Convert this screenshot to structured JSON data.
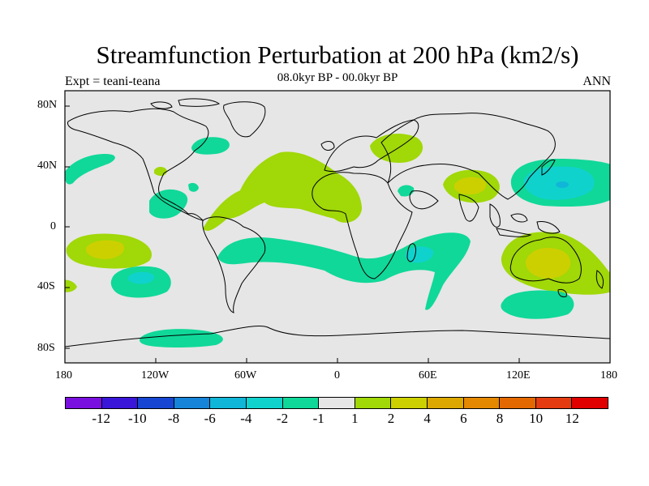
{
  "title": "Streamfunction Perturbation at 200 hPa (km2/s)",
  "experiment": "Expt = teani-teana",
  "subtitle": "08.0kyr BP - 00.0kyr BP",
  "season": "ANN",
  "axes": {
    "lat_labels": [
      "80N",
      "40N",
      "0",
      "40S",
      "80S"
    ],
    "lon_labels": [
      "180",
      "120W",
      "60W",
      "0",
      "60E",
      "120E",
      "180"
    ]
  },
  "colors": {
    "background": "#e6e6e6",
    "coast": "#000000"
  },
  "colorbar": {
    "labels": [
      "-12",
      "-10",
      "-8",
      "-6",
      "-4",
      "-2",
      "-1",
      "1",
      "2",
      "4",
      "6",
      "8",
      "10",
      "12"
    ],
    "colors": [
      "#7a10e0",
      "#3a16d8",
      "#1646d2",
      "#1684d8",
      "#10b6d8",
      "#10d2cc",
      "#10d898",
      "#e6e6e6",
      "#a0d808",
      "#ccd000",
      "#dca800",
      "#e48800",
      "#e46800",
      "#e43c10",
      "#e00000"
    ]
  },
  "chart_data": {
    "type": "filled-contour-map",
    "title": "Streamfunction Perturbation at 200 hPa (km2/s)",
    "projection": "cylindrical-equidistant",
    "lon_range": [
      -180,
      180
    ],
    "lat_range": [
      -90,
      90
    ],
    "levels": [
      -12,
      -10,
      -8,
      -6,
      -4,
      -2,
      -1,
      1,
      2,
      4,
      6,
      8,
      10,
      12
    ],
    "regions": [
      {
        "name": "north-atlantic-africa-positive",
        "level": "1 to 2",
        "lon": [
          -70,
          20
        ],
        "lat": [
          0,
          45
        ]
      },
      {
        "name": "central-asia-positive",
        "level": "1 to 2",
        "lon": [
          40,
          60
        ],
        "lat": [
          45,
          60
        ]
      },
      {
        "name": "tibet-positive",
        "level": "2 to 4",
        "lon": [
          70,
          110
        ],
        "lat": [
          20,
          40
        ]
      },
      {
        "name": "north-pacific-negative",
        "level": "-4 to -2",
        "lon": [
          120,
          180
        ],
        "lat": [
          15,
          45
        ]
      },
      {
        "name": "australia-positive",
        "level": "2 to 4",
        "lon": [
          115,
          180
        ],
        "lat": [
          -45,
          -5
        ]
      },
      {
        "name": "southern-ocean-negative",
        "level": "-2 to -1",
        "lon": [
          -80,
          100
        ],
        "lat": [
          -40,
          -10
        ]
      },
      {
        "name": "south-indian-ocean-negative",
        "level": "-2 to -1",
        "lon": [
          120,
          155
        ],
        "lat": [
          -60,
          -42
        ]
      },
      {
        "name": "south-pacific-positive",
        "level": "2 to 4",
        "lon": [
          -180,
          -130
        ],
        "lat": [
          -30,
          -5
        ]
      },
      {
        "name": "south-pacific-negative",
        "level": "-4 to -2",
        "lon": [
          -160,
          -130
        ],
        "lat": [
          -45,
          -25
        ]
      },
      {
        "name": "antarctic-margin-negative",
        "level": "-2 to -1",
        "lon": [
          -130,
          -80
        ],
        "lat": [
          -78,
          -68
        ]
      }
    ]
  }
}
